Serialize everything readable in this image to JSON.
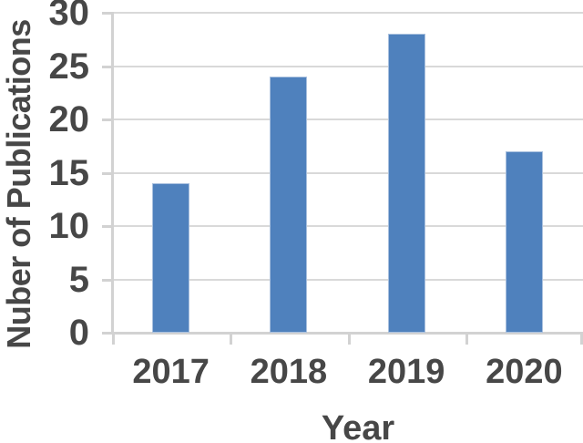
{
  "chart_data": {
    "type": "bar",
    "categories": [
      "2017",
      "2018",
      "2019",
      "2020"
    ],
    "values": [
      14,
      24,
      28,
      17
    ],
    "title": "",
    "xlabel": "Year",
    "ylabel": "Nuber of Publications",
    "ylim": [
      0,
      30
    ],
    "yticks": [
      0,
      5,
      10,
      15,
      20,
      25,
      30
    ],
    "grid": true,
    "legend_position": "none",
    "colors": {
      "bar_fill": "#4F81BD",
      "bar_edge": "#A9C0DE",
      "text": "#474747",
      "gridline": "#D9D9D9",
      "axis": "#D2D2D2"
    }
  }
}
